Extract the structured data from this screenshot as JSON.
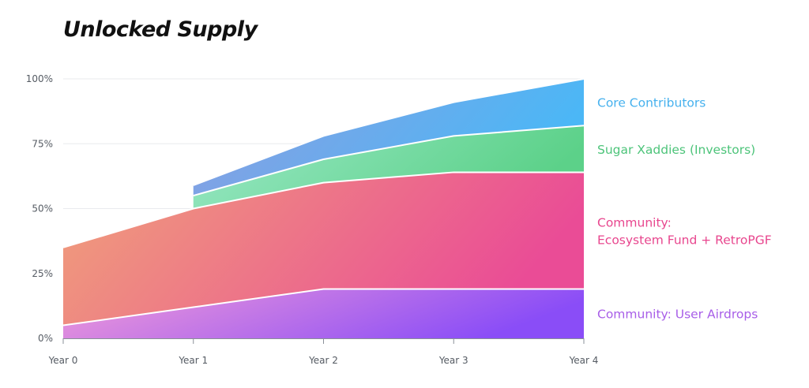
{
  "chart_data": {
    "type": "area",
    "title": "Unlocked Supply",
    "xlabel": "",
    "ylabel": "",
    "x": [
      "Year 0",
      "Year 1",
      "Year 2",
      "Year 3",
      "Year 4"
    ],
    "y_ticks": [
      "0%",
      "25%",
      "50%",
      "75%",
      "100%"
    ],
    "ylim": [
      0,
      100
    ],
    "grid": "horizontal",
    "legend_placement": "right",
    "stacked": true,
    "series": [
      {
        "name": "Community: User Airdrops",
        "label_lines": [
          "Community: User Airdrops"
        ],
        "color_start": "#f29bd8",
        "color_end": "#8a4df7",
        "label_color": "#a85ee8",
        "x_start": 0,
        "values": [
          5,
          12,
          19,
          19,
          19
        ]
      },
      {
        "name": "Community: Ecosystem Fund + RetroPGF",
        "label_lines": [
          "Community:",
          "Ecosystem Fund + RetroPGF"
        ],
        "color_start": "#f0a07a",
        "color_end": "#ea4c96",
        "label_color": "#e8468e",
        "x_start": 0,
        "values": [
          30,
          38,
          41,
          45,
          45
        ]
      },
      {
        "name": "Sugar Xaddies (Investors)",
        "label_lines": [
          "Sugar Xaddies (Investors)"
        ],
        "color_start": "#9ae8c6",
        "color_end": "#5cd189",
        "label_color": "#4dc47a",
        "x_start": 1,
        "values": [
          0,
          5,
          9,
          14,
          18
        ]
      },
      {
        "name": "Core Contributors",
        "label_lines": [
          "Core Contributors"
        ],
        "color_start": "#8e9de0",
        "color_end": "#4bb7f6",
        "label_color": "#46b1ee",
        "x_start": 1,
        "values": [
          0,
          4,
          9,
          13,
          18
        ]
      }
    ]
  }
}
